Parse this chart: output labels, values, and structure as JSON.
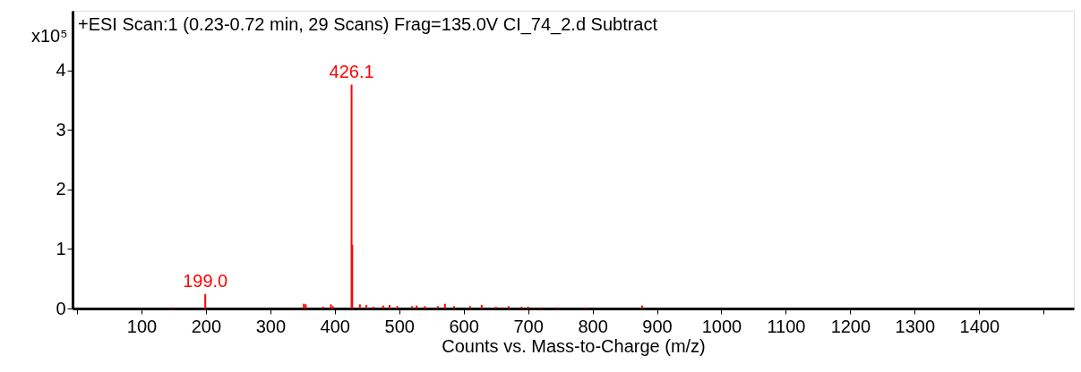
{
  "chart_data": {
    "type": "bar",
    "title": "+ESI Scan:1 (0.23-0.72 min, 29 Scans) Frag=135.0V CI_74_2.d  Subtract",
    "xlabel": "Counts vs. Mass-to-Charge (m/z)",
    "ylabel": "x10⁵",
    "x": [
      148,
      199.0,
      352,
      355,
      382,
      394,
      397,
      426.1,
      427.1,
      439,
      449,
      460,
      475,
      485,
      497,
      520,
      527,
      540,
      560,
      571,
      585,
      610,
      628,
      650,
      670,
      690,
      700,
      720,
      745,
      790,
      877
    ],
    "series": [
      {
        "color": "#ff0000",
        "values": [
          0.02,
          0.24,
          0.08,
          0.07,
          0.03,
          0.07,
          0.04,
          3.76,
          1.07,
          0.07,
          0.06,
          0.03,
          0.05,
          0.06,
          0.04,
          0.04,
          0.05,
          0.04,
          0.04,
          0.08,
          0.04,
          0.04,
          0.06,
          0.03,
          0.04,
          0.03,
          0.03,
          0.02,
          0.02,
          0.02,
          0.05
        ]
      }
    ],
    "annotations": [
      {
        "text": "426.1",
        "x": 426.1,
        "y": 3.76
      },
      {
        "text": "199.0",
        "x": 199.0,
        "y": 0.24
      }
    ],
    "xlim": [
      0,
      1540
    ],
    "ylim": [
      0,
      5
    ],
    "xticks": [
      {
        "value": 0,
        "label": null
      },
      100,
      200,
      300,
      400,
      500,
      600,
      700,
      800,
      900,
      1000,
      1100,
      1200,
      1300,
      1400,
      {
        "value": 1500,
        "label": null
      }
    ],
    "yticks": [
      0,
      1,
      2,
      3,
      4
    ],
    "grid": false
  }
}
